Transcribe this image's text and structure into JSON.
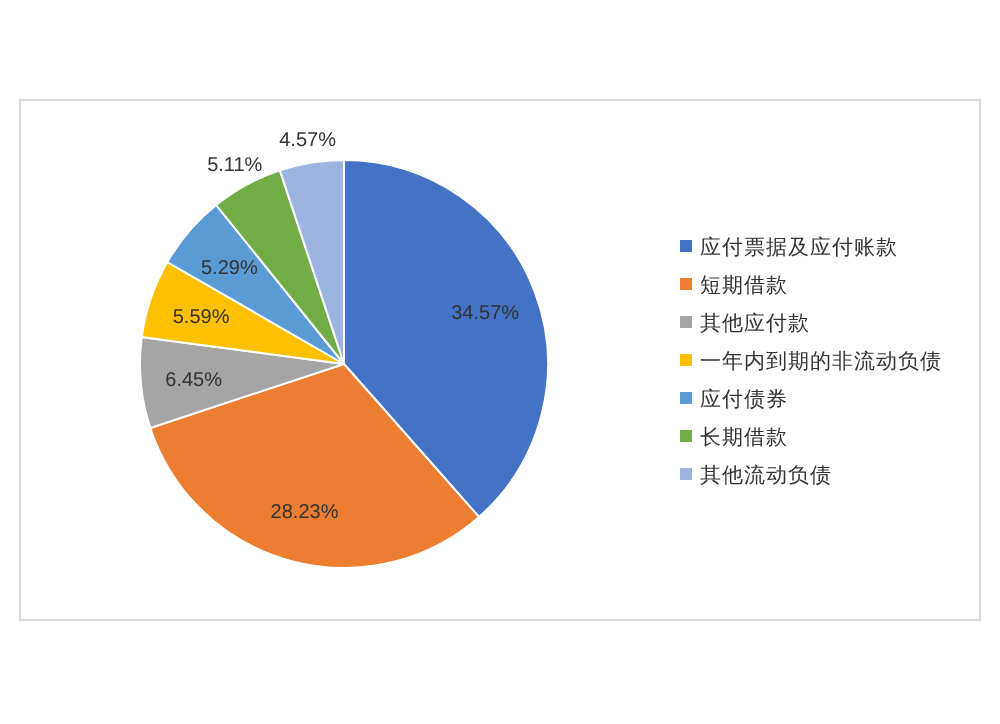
{
  "chart_data": {
    "type": "pie",
    "categories": [
      "应付票据及应付账款",
      "短期借款",
      "其他应付款",
      "一年内到期的非流动负债",
      "应付债券",
      "长期借款",
      "其他流动负债"
    ],
    "values": [
      34.57,
      28.23,
      6.45,
      5.59,
      5.29,
      5.11,
      4.57
    ],
    "colors": [
      "#4472c4",
      "#ed7d31",
      "#a5a5a5",
      "#ffc000",
      "#5b9bd5",
      "#70ad47",
      "#9eb4e0"
    ],
    "value_labels": [
      "34.57%",
      "28.23%",
      "6.45%",
      "5.59%",
      "5.29%",
      "5.11%",
      "4.57%"
    ],
    "legend": "right"
  }
}
